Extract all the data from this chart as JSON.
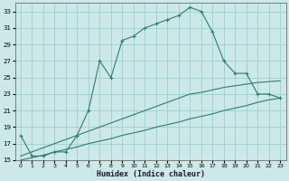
{
  "x": [
    0,
    1,
    2,
    3,
    4,
    5,
    6,
    7,
    8,
    9,
    10,
    11,
    12,
    13,
    14,
    15,
    16,
    17,
    18,
    19,
    20,
    21,
    22,
    23
  ],
  "y_main": [
    18,
    15.5,
    15.5,
    16,
    16,
    18,
    21,
    27,
    25,
    29.5,
    30,
    31,
    31.5,
    32,
    32.5,
    33.5,
    33,
    30.5,
    27,
    25.5,
    25.5,
    23,
    23,
    22.5
  ],
  "y_ref1": [
    15.5,
    16,
    16.5,
    17,
    17.5,
    18,
    18.5,
    19,
    19.5,
    20,
    20.5,
    21,
    21.5,
    22,
    22.5,
    23,
    23.2,
    23.5,
    23.8,
    24,
    24.2,
    24.4,
    24.5,
    24.6
  ],
  "y_ref2": [
    15,
    15.3,
    15.6,
    16,
    16.3,
    16.6,
    17,
    17.3,
    17.6,
    18,
    18.3,
    18.6,
    19,
    19.3,
    19.6,
    20,
    20.3,
    20.6,
    21,
    21.3,
    21.6,
    22,
    22.3,
    22.5
  ],
  "line_color": "#2e7d6e",
  "bg_color": "#cce8e8",
  "grid_color": "#9fcece",
  "xlabel": "Humidex (Indice chaleur)",
  "ylim": [
    15,
    34
  ],
  "xlim": [
    -0.5,
    23.5
  ],
  "yticks": [
    15,
    17,
    19,
    21,
    23,
    25,
    27,
    29,
    31,
    33
  ],
  "xticks": [
    0,
    1,
    2,
    3,
    4,
    5,
    6,
    7,
    8,
    9,
    10,
    11,
    12,
    13,
    14,
    15,
    16,
    17,
    18,
    19,
    20,
    21,
    22,
    23
  ]
}
